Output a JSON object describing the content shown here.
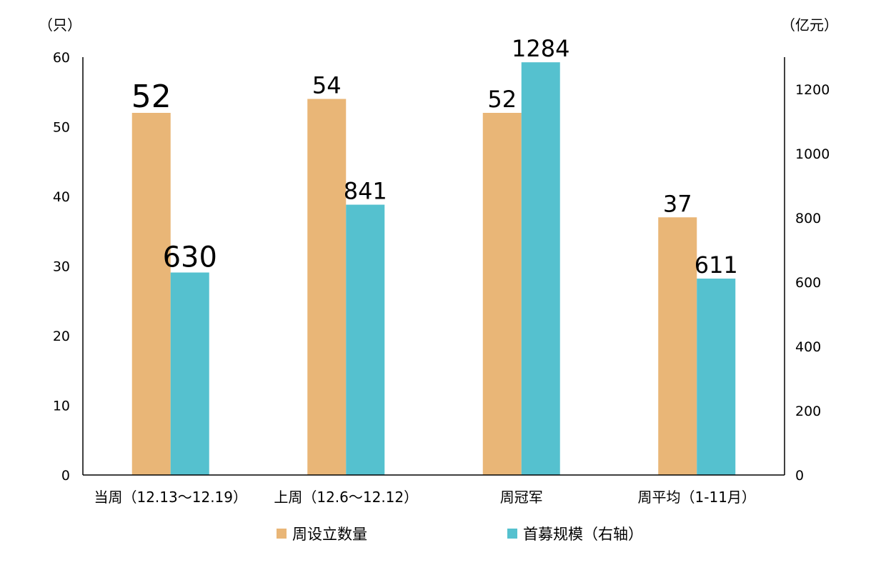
{
  "chart_data": {
    "type": "bar",
    "categories": [
      "当周（12.13～12.19）",
      "上周（12.6～12.12）",
      "周冠军",
      "周平均（1-11月）"
    ],
    "series": [
      {
        "name": "周设立数量",
        "axis": "left",
        "color": "#E9B677",
        "values": [
          52,
          54,
          52,
          37
        ]
      },
      {
        "name": "首募规模（右轴）",
        "axis": "right",
        "color": "#55C1CF",
        "values": [
          630,
          841,
          1284,
          611
        ]
      }
    ],
    "left_axis": {
      "unit": "（只）",
      "ylim": [
        0,
        60
      ],
      "ticks": [
        0,
        10,
        20,
        30,
        40,
        50,
        60
      ]
    },
    "right_axis": {
      "unit": "（亿元）",
      "ylim": [
        0,
        1300
      ],
      "ticks": [
        0,
        200,
        400,
        600,
        800,
        1000,
        1200
      ]
    },
    "grid": false,
    "legend_position": "bottom"
  }
}
